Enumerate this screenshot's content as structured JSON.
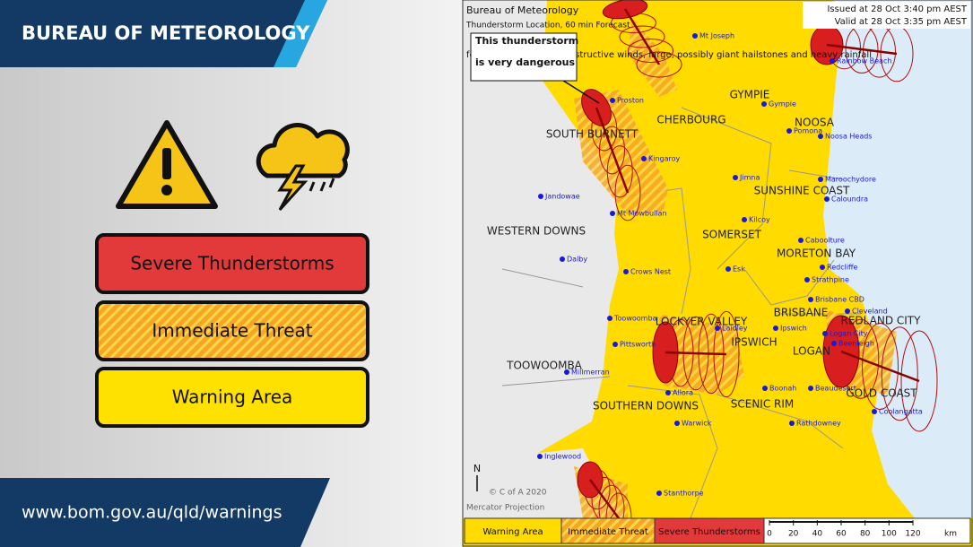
{
  "header": {
    "title": "BUREAU OF METEOROLOGY"
  },
  "legend": {
    "items": [
      "Severe Thunderstorms",
      "Immediate Threat",
      "Warning Area"
    ]
  },
  "footer": {
    "url": "www.bom.gov.au/qld/warnings"
  },
  "map": {
    "title": "Bureau of Meteorology",
    "subtitle": "Thunderstorm Location, 60 min Forecast",
    "issued": "Issued at 28 Oct 3:40 pm AEST",
    "valid": "Valid at 28 Oct 3:35 pm AEST",
    "callout": [
      "This thunderstorm",
      "is very dangerous"
    ],
    "warning_text": "for damaging, locally destructive winds, large, possibly giant hailstones and heavy rainfall",
    "copyright": "© C of A 2020",
    "projection": "Mercator Projection",
    "north": "N",
    "regions": [
      "GYMPIE",
      "CHERBOURG",
      "NOOSA",
      "SOUTH BURNETT",
      "SUNSHINE COAST",
      "WESTERN DOWNS",
      "SOMERSET",
      "MORETON BAY",
      "BRISBANE",
      "REDLAND CITY",
      "LOCKYER VALLEY",
      "IPSWICH",
      "LOGAN",
      "TOOWOOMBA",
      "GOLD COAST",
      "SOUTHERN DOWNS",
      "SCENIC RIM"
    ],
    "towns": [
      "Mt Joseph",
      "Rainbow Beach",
      "Proston",
      "Gympie",
      "Pomona",
      "Noosa Heads",
      "Kingaroy",
      "Jimna",
      "Maroochydore",
      "Caloundra",
      "Jandowae",
      "Mt Mowbullan",
      "Kilcoy",
      "Caboolture",
      "Dalby",
      "Redcliffe",
      "Crows Nest",
      "Esk",
      "Strathpine",
      "Brisbane CBD",
      "Cleveland",
      "Toowoomba",
      "Laidley",
      "Ipswich",
      "Logan City",
      "Beenleigh",
      "Pittsworth",
      "Millmerran",
      "Boonah",
      "Beaudesert",
      "Allora",
      "Warwick",
      "Rathdowney",
      "Coolangatta",
      "Inglewood",
      "Stanthorpe"
    ],
    "legend": [
      "Warning Area",
      "Immediate Threat",
      "Severe Thunderstorms"
    ],
    "scale": {
      "labels": [
        "0",
        "20",
        "40",
        "60",
        "80",
        "100",
        "120"
      ],
      "unit": "km"
    }
  }
}
